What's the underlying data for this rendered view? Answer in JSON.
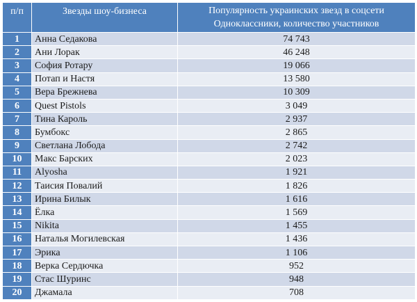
{
  "table": {
    "headers": {
      "number": "п/п",
      "star": "Звезды шоу-бизнеса",
      "popularity_line1": "Популярность украинских звезд в соцсети",
      "popularity_line2": "Одноклассники,  количество участников"
    },
    "rows": [
      {
        "n": "1",
        "name": "Анна Седакова",
        "count": "74 743"
      },
      {
        "n": "2",
        "name": "Ани Лорак",
        "count": "46 248"
      },
      {
        "n": "3",
        "name": "София Ротару",
        "count": "19 066"
      },
      {
        "n": "4",
        "name": "Потап и Настя",
        "count": "13 580"
      },
      {
        "n": "5",
        "name": "Вера Брежнева",
        "count": "10 309"
      },
      {
        "n": "6",
        "name": "Quest Pistols",
        "count": "3 049"
      },
      {
        "n": "7",
        "name": "Тина Кароль",
        "count": "2 937"
      },
      {
        "n": "8",
        "name": "Бумбокс",
        "count": "2 865"
      },
      {
        "n": "9",
        "name": "Светлана Лобода",
        "count": "2 742"
      },
      {
        "n": "10",
        "name": "Макс Барских",
        "count": "2 023"
      },
      {
        "n": "11",
        "name": "Alyosha",
        "count": "1 921"
      },
      {
        "n": "12",
        "name": "Таисия Повалий",
        "count": "1 826"
      },
      {
        "n": "13",
        "name": "Ирина Билык",
        "count": "1 616"
      },
      {
        "n": "14",
        "name": "Ёлка",
        "count": "1 569"
      },
      {
        "n": "15",
        "name": "Nikita",
        "count": "1 455"
      },
      {
        "n": "16",
        "name": "Наталья Могилевская",
        "count": "1 436"
      },
      {
        "n": "17",
        "name": "Эрика",
        "count": "1 106"
      },
      {
        "n": "18",
        "name": "Верка Сердючка",
        "count": "952"
      },
      {
        "n": "19",
        "name": "Стас Шуринс",
        "count": "948"
      },
      {
        "n": "20",
        "name": "Джамала",
        "count": "708"
      }
    ]
  },
  "colors": {
    "header_bg": "#4f81bd",
    "row_odd_bg": "#d0d8e8",
    "row_even_bg": "#e9edf4"
  }
}
